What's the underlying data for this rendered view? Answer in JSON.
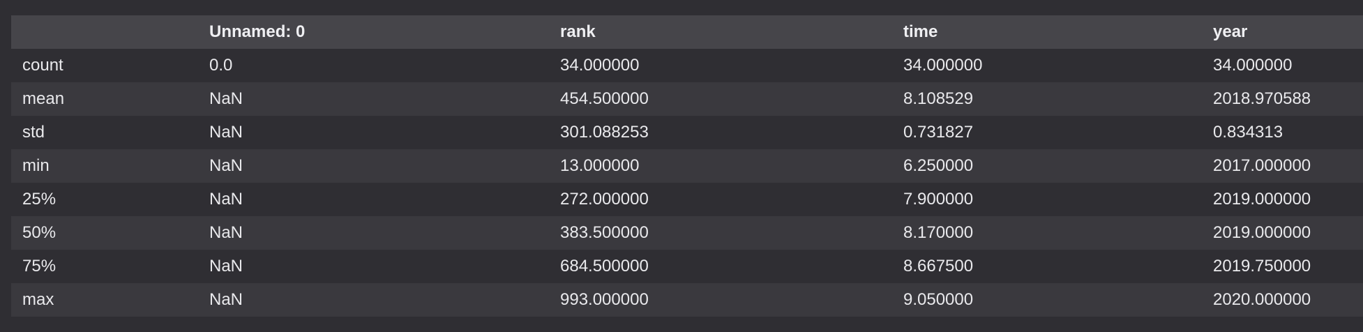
{
  "table": {
    "index_header": "",
    "columns": [
      "Unnamed: 0",
      "rank",
      "time",
      "year"
    ],
    "rows": [
      {
        "label": "count",
        "values": [
          "0.0",
          "34.000000",
          "34.000000",
          "34.000000"
        ]
      },
      {
        "label": "mean",
        "values": [
          "NaN",
          "454.500000",
          "8.108529",
          "2018.970588"
        ]
      },
      {
        "label": "std",
        "values": [
          "NaN",
          "301.088253",
          "0.731827",
          "0.834313"
        ]
      },
      {
        "label": "min",
        "values": [
          "NaN",
          "13.000000",
          "6.250000",
          "2017.000000"
        ]
      },
      {
        "label": "25%",
        "values": [
          "NaN",
          "272.000000",
          "7.900000",
          "2019.000000"
        ]
      },
      {
        "label": "50%",
        "values": [
          "NaN",
          "383.500000",
          "8.170000",
          "2019.000000"
        ]
      },
      {
        "label": "75%",
        "values": [
          "NaN",
          "684.500000",
          "8.667500",
          "2019.750000"
        ]
      },
      {
        "label": "max",
        "values": [
          "NaN",
          "993.000000",
          "9.050000",
          "2020.000000"
        ]
      }
    ]
  }
}
